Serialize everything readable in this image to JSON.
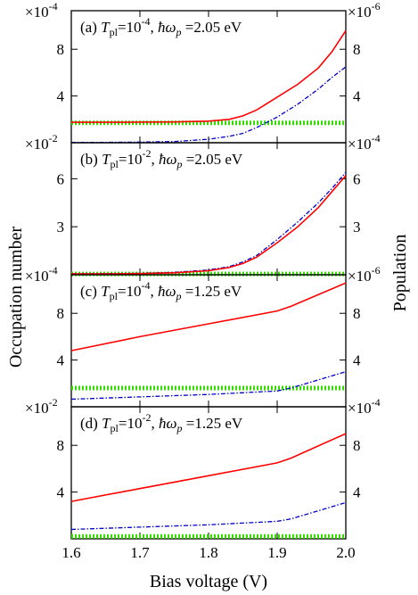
{
  "chart_data": {
    "type": "line",
    "xlabel": "Bias voltage (V)",
    "ylabel_left": "Occupation number",
    "ylabel_right": "Population",
    "xlim": [
      1.6,
      2.0
    ],
    "x_ticks": [
      "1.6",
      "1.7",
      "1.8",
      "1.9",
      "2.0"
    ],
    "colors": {
      "occupation": "#ff0000",
      "population": "#0000cc",
      "reference": "#33dd00"
    },
    "panels": [
      {
        "label": "(a)",
        "T_exp": "-4",
        "hw": "2.05",
        "left_multiplier": "×10",
        "left_exp": "-4",
        "right_multiplier": "×10",
        "right_exp": "-6",
        "ylim_left": [
          0,
          11.3
        ],
        "ylim_right": [
          0,
          11.3
        ],
        "left_ticks": [
          "4",
          "8"
        ],
        "right_ticks": [
          "4",
          "8"
        ],
        "x": [
          1.6,
          1.65,
          1.7,
          1.75,
          1.8,
          1.83,
          1.85,
          1.87,
          1.9,
          1.93,
          1.96,
          1.98,
          2.0
        ],
        "series": [
          {
            "values": [
              1.75,
              1.75,
              1.76,
              1.78,
              1.85,
              2.0,
              2.3,
              2.8,
              3.9,
              5.0,
              6.4,
              7.8,
              9.6
            ]
          },
          {
            "values": [
              0.02,
              0.03,
              0.05,
              0.1,
              0.3,
              0.55,
              0.8,
              1.3,
              2.2,
              3.3,
              4.6,
              5.6,
              6.5
            ]
          },
          {
            "values": [
              1.7,
              1.7,
              1.7,
              1.7,
              1.7,
              1.7,
              1.7,
              1.7,
              1.7,
              1.7,
              1.7,
              1.7,
              1.7
            ]
          }
        ]
      },
      {
        "label": "(b)",
        "T_exp": "-2",
        "hw": "2.05",
        "left_multiplier": "×10",
        "left_exp": "-2",
        "right_multiplier": "×10",
        "right_exp": "-4",
        "ylim_left": [
          0,
          8.25
        ],
        "ylim_right": [
          0,
          8.25
        ],
        "left_ticks": [
          "3",
          "6"
        ],
        "right_ticks": [
          "3",
          "6"
        ],
        "x": [
          1.6,
          1.65,
          1.7,
          1.75,
          1.8,
          1.83,
          1.85,
          1.87,
          1.9,
          1.93,
          1.96,
          1.98,
          2.0
        ],
        "series": [
          {
            "values": [
              0.05,
              0.05,
              0.07,
              0.12,
              0.25,
              0.45,
              0.7,
              1.1,
              2.0,
              3.0,
              4.2,
              5.2,
              6.2
            ]
          },
          {
            "values": [
              0.06,
              0.07,
              0.09,
              0.15,
              0.3,
              0.5,
              0.8,
              1.2,
              2.2,
              3.3,
              4.5,
              5.4,
              6.4
            ]
          },
          {
            "values": [
              0.05,
              0.05,
              0.05,
              0.05,
              0.05,
              0.05,
              0.05,
              0.05,
              0.05,
              0.05,
              0.05,
              0.05,
              0.05
            ]
          }
        ]
      },
      {
        "label": "(c)",
        "T_exp": "-4",
        "hw": "1.25",
        "left_multiplier": "×10",
        "left_exp": "-4",
        "right_multiplier": "×10",
        "right_exp": "-6",
        "ylim_left": [
          0,
          11.3
        ],
        "ylim_right": [
          0,
          11.3
        ],
        "left_ticks": [
          "4",
          "8"
        ],
        "right_ticks": [
          "4",
          "8"
        ],
        "x": [
          1.6,
          1.7,
          1.8,
          1.9,
          1.92,
          2.0
        ],
        "series": [
          {
            "values": [
              4.8,
              6.0,
              7.1,
              8.2,
              8.6,
              10.6
            ]
          },
          {
            "values": [
              0.65,
              0.85,
              1.05,
              1.35,
              1.6,
              3.0
            ]
          },
          {
            "values": [
              1.6,
              1.6,
              1.6,
              1.6,
              1.6,
              1.6
            ]
          }
        ]
      },
      {
        "label": "(d)",
        "T_exp": "-2",
        "hw": "1.25",
        "left_multiplier": "×10",
        "left_exp": "-2",
        "right_multiplier": "×10",
        "right_exp": "-4",
        "ylim_left": [
          0,
          11.3
        ],
        "ylim_right": [
          0,
          11.3
        ],
        "left_ticks": [
          "4",
          "8"
        ],
        "right_ticks": [
          "4",
          "8"
        ],
        "x": [
          1.6,
          1.7,
          1.8,
          1.9,
          1.92,
          2.0
        ],
        "series": [
          {
            "values": [
              3.2,
              4.3,
              5.4,
              6.5,
              6.9,
              9.0
            ]
          },
          {
            "values": [
              0.8,
              1.0,
              1.2,
              1.5,
              1.7,
              3.1
            ]
          },
          {
            "values": [
              0.2,
              0.2,
              0.2,
              0.2,
              0.2,
              0.2
            ]
          }
        ]
      }
    ]
  }
}
